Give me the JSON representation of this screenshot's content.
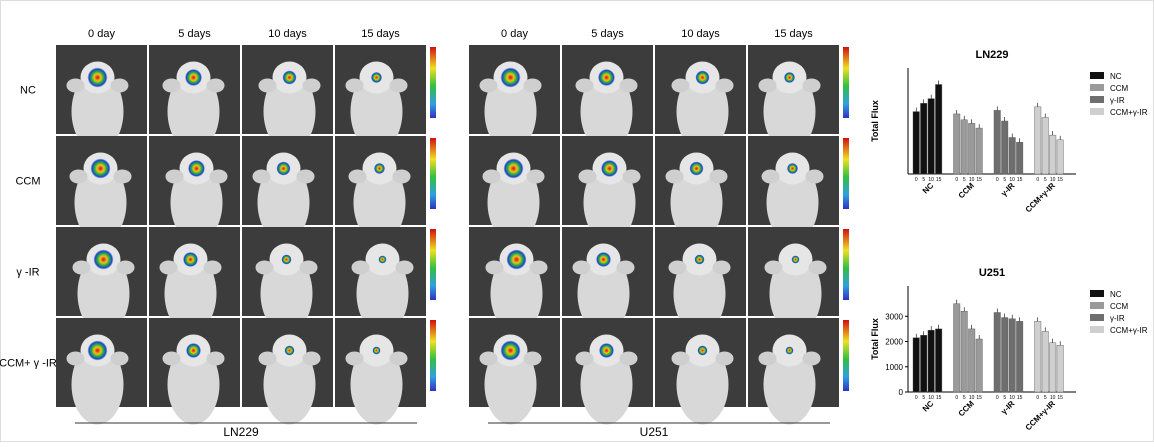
{
  "image_grid": {
    "columns": [
      "0 day",
      "5 days",
      "10 days",
      "15 days"
    ],
    "rows": [
      "NC",
      "CCM",
      "γ -IR",
      "CCM+ γ -IR"
    ],
    "panels": [
      "LN229",
      "U251"
    ]
  },
  "chart_data": [
    {
      "type": "bar",
      "title": "LN229",
      "y_label": "Total Flux",
      "categories": [
        "0",
        "5",
        "10",
        "15"
      ],
      "ylim": [
        0,
        4500
      ],
      "series": [
        {
          "name": "NC",
          "color": "#111111",
          "values": [
            2650,
            3000,
            3200,
            3800
          ]
        },
        {
          "name": "CCM",
          "color": "#9a9a9a",
          "values": [
            2550,
            2300,
            2150,
            1950
          ]
        },
        {
          "name": "γ-IR",
          "color": "#6e6e6e",
          "values": [
            2700,
            2250,
            1550,
            1350
          ]
        },
        {
          "name": "CCM+γ-IR",
          "color": "#cfcfcf",
          "values": [
            2850,
            2400,
            1650,
            1450
          ]
        }
      ]
    },
    {
      "type": "bar",
      "title": "U251",
      "y_label": "Total Flux",
      "categories": [
        "0",
        "5",
        "10",
        "15"
      ],
      "ylim": [
        0,
        4200
      ],
      "yticks": [
        0,
        1000,
        2000,
        3000
      ],
      "series": [
        {
          "name": "NC",
          "color": "#111111",
          "values": [
            2150,
            2250,
            2450,
            2500
          ]
        },
        {
          "name": "CCM",
          "color": "#9a9a9a",
          "values": [
            3500,
            3200,
            2500,
            2100
          ]
        },
        {
          "name": "γ-IR",
          "color": "#6e6e6e",
          "values": [
            3150,
            2950,
            2900,
            2800
          ]
        },
        {
          "name": "CCM+γ-IR",
          "color": "#cfcfcf",
          "values": [
            2800,
            2400,
            1950,
            1850
          ]
        }
      ]
    }
  ]
}
